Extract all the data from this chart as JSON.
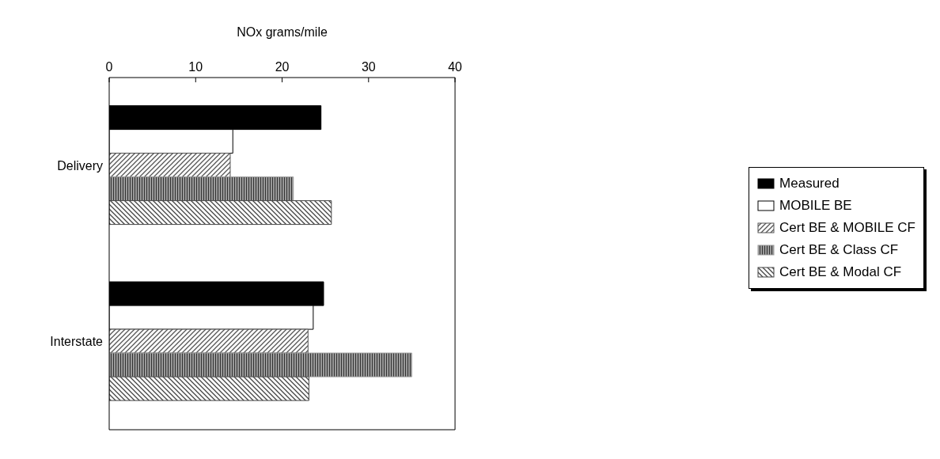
{
  "chart_data": {
    "type": "bar",
    "orientation": "horizontal",
    "xlabel": "NOx grams/mile",
    "categories": [
      "Delivery",
      "Interstate"
    ],
    "series": [
      {
        "name": "Measured",
        "color": "#000000",
        "values": [
          24.5,
          24.8
        ]
      },
      {
        "name": "MOBILE BE",
        "color": "#ffffff",
        "values": [
          14.3,
          23.6
        ]
      },
      {
        "name": "Cert BE & MOBILE CF",
        "color": "#555555",
        "values": [
          14.0,
          23.0
        ]
      },
      {
        "name": "Cert BE & Class CF",
        "color": "#999999",
        "values": [
          21.3,
          35.0
        ]
      },
      {
        "name": "Cert BE & Modal CF",
        "color": "#444444",
        "values": [
          25.7,
          23.1
        ]
      }
    ],
    "xlim": [
      0,
      40
    ],
    "xticks": [
      0,
      10,
      20,
      30,
      40
    ],
    "grid": false,
    "legend": "right"
  }
}
